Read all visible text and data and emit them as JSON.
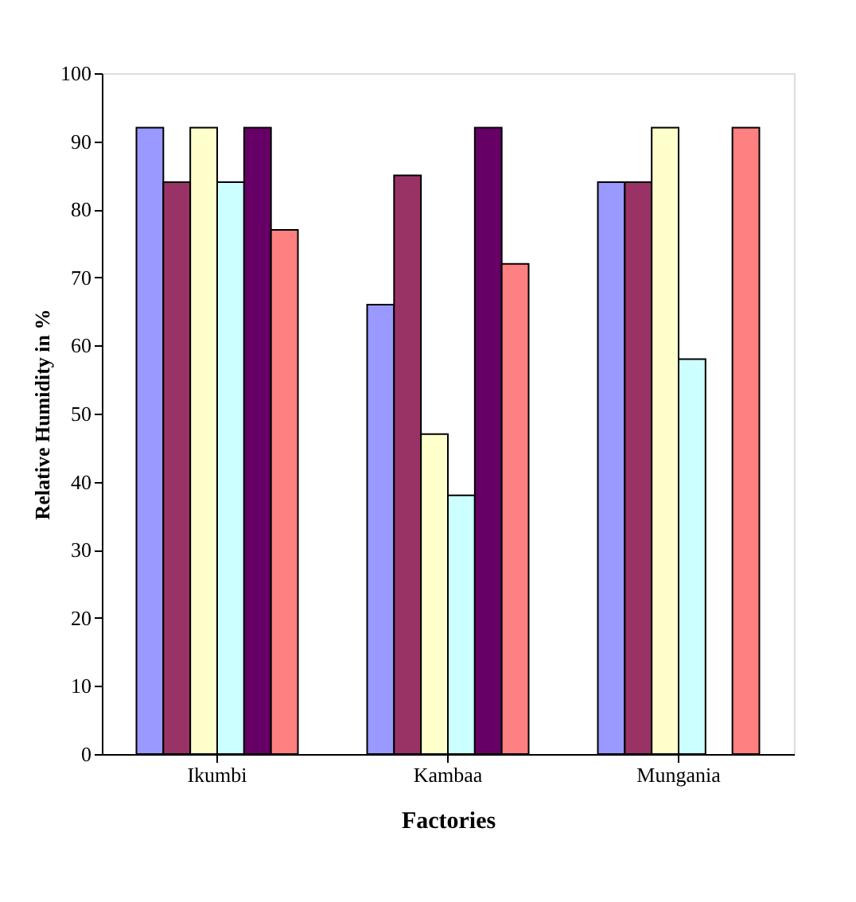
{
  "chart_data": {
    "type": "bar",
    "xlabel": "Factories",
    "ylabel": "Relative Humidity in %",
    "categories": [
      "Ikumbi",
      "Kambaa",
      "Mungania"
    ],
    "series": [
      {
        "color": "#9999ff",
        "values": [
          92,
          66,
          84
        ]
      },
      {
        "color": "#993366",
        "values": [
          84,
          85,
          84
        ]
      },
      {
        "color": "#ffffcc",
        "values": [
          92,
          47,
          92
        ]
      },
      {
        "color": "#ccffff",
        "values": [
          84,
          38,
          58
        ]
      },
      {
        "color": "#660066",
        "values": [
          92,
          92,
          null
        ]
      },
      {
        "color": "#ff8080",
        "values": [
          77,
          72,
          92
        ]
      }
    ],
    "ylim": [
      0,
      100
    ],
    "yticks": [
      0,
      10,
      20,
      30,
      40,
      50,
      60,
      70,
      80,
      90,
      100
    ],
    "grid": false,
    "legend": false
  }
}
